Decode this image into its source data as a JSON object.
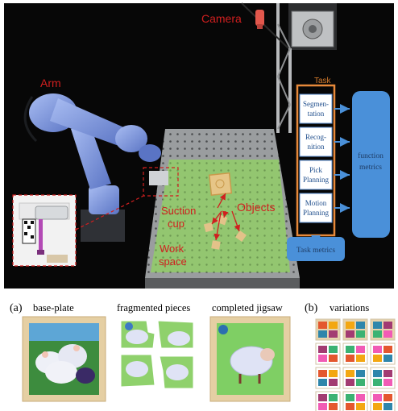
{
  "top_panel": {
    "labels": {
      "camera": "Camera",
      "arm": "Arm",
      "suction_cup": [
        "Suction",
        "cup"
      ],
      "objects": "Objects",
      "work_space": [
        "Work",
        "space"
      ]
    },
    "flow": {
      "task": "Task",
      "steps": [
        [
          "Segmen-",
          "tation"
        ],
        [
          "Recog-",
          "nition"
        ],
        [
          "Pick",
          "Planning"
        ],
        [
          "Motion",
          "Planning"
        ]
      ],
      "task_metrics": "Task metrics",
      "function_metrics": [
        "function",
        "metrics"
      ]
    }
  },
  "bottom_panel": {
    "tag_a": "(a)",
    "tag_b": "(b)",
    "captions": [
      "base-plate",
      "fragmented pieces",
      "completed jigsaw",
      "variations"
    ]
  },
  "colors": {
    "label_red": "#d11f1f",
    "flow_blue": "#4a90d9",
    "box_border": "#5b8fd1",
    "workspace_green": "#8fd36b"
  }
}
